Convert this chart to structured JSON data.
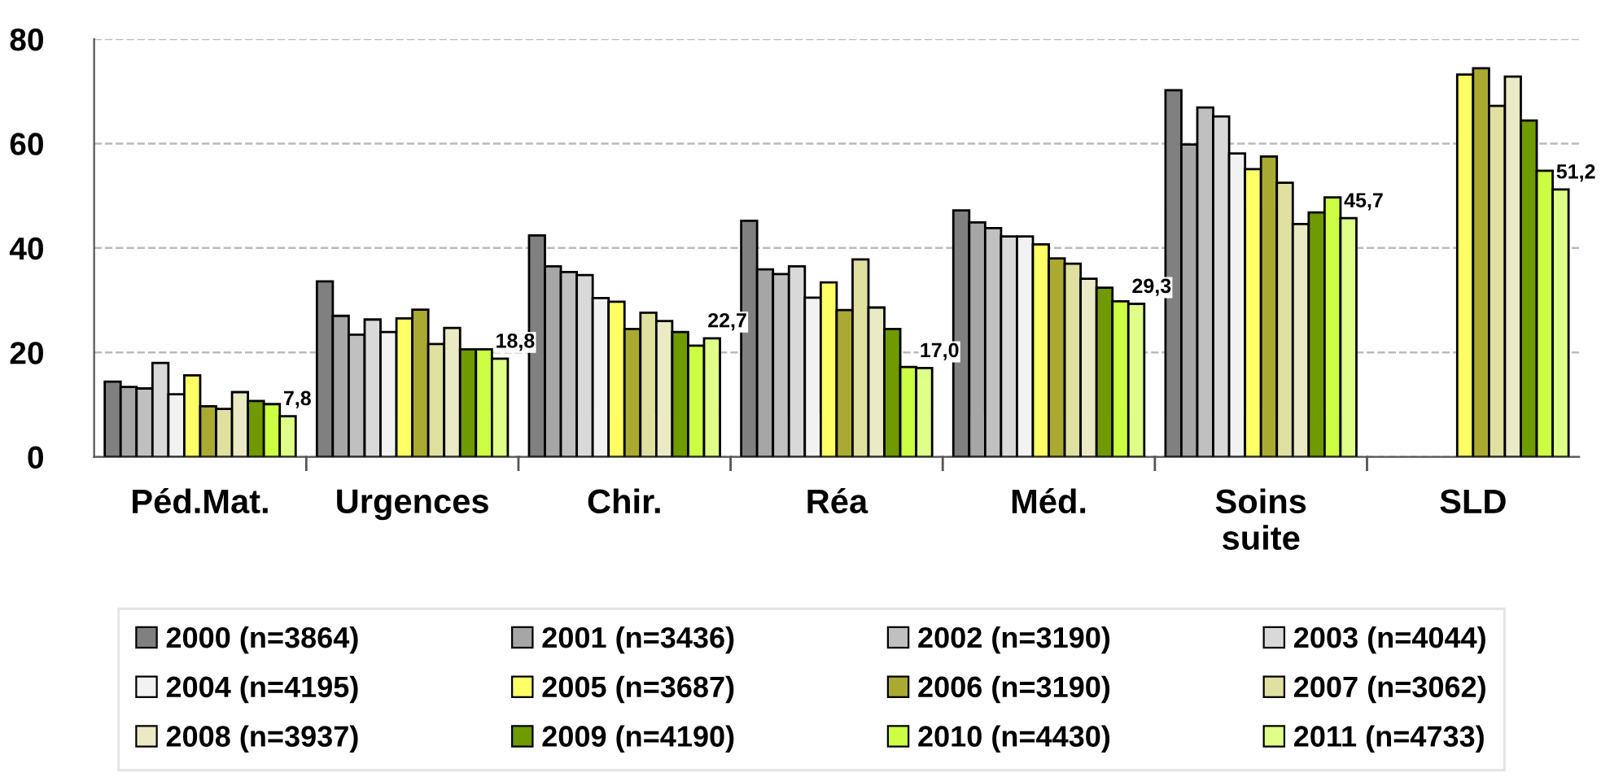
{
  "chart_data": {
    "type": "bar",
    "categories": [
      "Péd.Mat.",
      "Urgences",
      "Chir.",
      "Réa",
      "Méd.",
      "Soins\nsuite",
      "SLD"
    ],
    "ylim": [
      0,
      80
    ],
    "yticks": [
      0,
      20,
      40,
      60,
      80
    ],
    "grid": "y",
    "legend": "bottom",
    "series": [
      {
        "name": "2000 (n=3864)",
        "color": "#808080",
        "values": [
          14.4,
          33.6,
          42.4,
          45.2,
          47.2,
          70.2,
          null
        ]
      },
      {
        "name": "2001 (n=3436)",
        "color": "#a6a6a6",
        "values": [
          13.4,
          27.0,
          36.5,
          35.9,
          44.9,
          59.8,
          null
        ]
      },
      {
        "name": "2002 (n=3190)",
        "color": "#c0c0c0",
        "values": [
          13.1,
          23.4,
          35.4,
          35.0,
          43.8,
          66.9,
          null
        ]
      },
      {
        "name": "2003 (n=4044)",
        "color": "#d9d9d9",
        "values": [
          18.0,
          26.3,
          34.8,
          36.5,
          42.2,
          65.2,
          null
        ]
      },
      {
        "name": "2004 (n=4195)",
        "color": "#f2f2f2",
        "values": [
          12.0,
          23.9,
          30.4,
          30.5,
          42.2,
          58.1,
          null
        ]
      },
      {
        "name": "2005 (n=3687)",
        "color": "#ffff66",
        "values": [
          15.6,
          26.5,
          29.7,
          33.4,
          40.7,
          55.1,
          73.2
        ]
      },
      {
        "name": "2006 (n=3190)",
        "color": "#aaaa33",
        "values": [
          9.7,
          28.2,
          24.5,
          28.1,
          38.0,
          57.5,
          74.4
        ]
      },
      {
        "name": "2007 (n=3062)",
        "color": "#e0e0a0",
        "values": [
          9.2,
          21.6,
          27.6,
          37.8,
          37.0,
          52.5,
          67.2
        ]
      },
      {
        "name": "2008 (n=3937)",
        "color": "#eaeac4",
        "values": [
          12.4,
          24.7,
          26.0,
          28.6,
          34.1,
          44.6,
          72.8
        ]
      },
      {
        "name": "2009 (n=4190)",
        "color": "#6f9a00",
        "values": [
          10.7,
          20.6,
          23.9,
          24.5,
          32.4,
          46.8,
          64.4
        ]
      },
      {
        "name": "2010 (n=4430)",
        "color": "#ccff44",
        "values": [
          10.1,
          20.6,
          21.3,
          17.2,
          29.8,
          49.7,
          54.8
        ]
      },
      {
        "name": "2011 (n=4733)",
        "color": "#e0ff88",
        "values": [
          7.8,
          18.8,
          22.7,
          17.0,
          29.3,
          45.7,
          51.2
        ],
        "value_labels": [
          "7,8",
          "18,8",
          "22,7",
          "17,0",
          "29,3",
          "45,7",
          "51,2"
        ]
      }
    ]
  }
}
